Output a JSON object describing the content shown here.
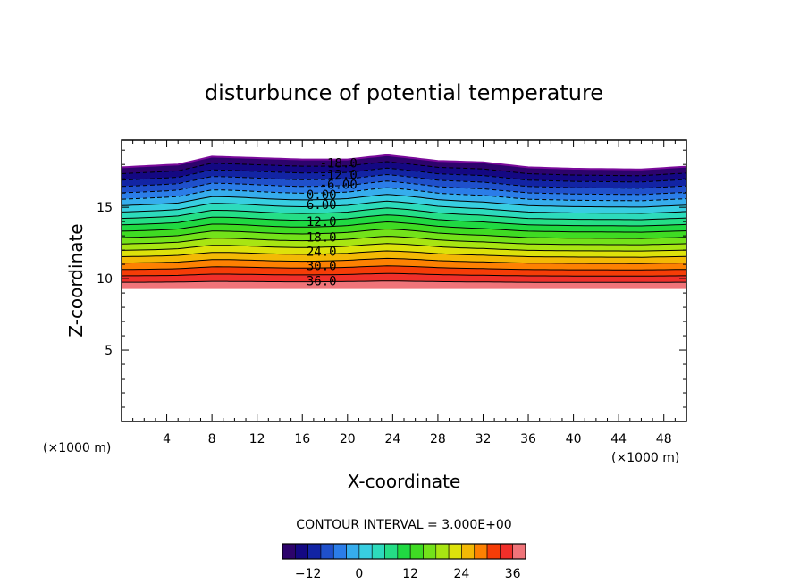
{
  "chart_data": {
    "type": "contour",
    "title": "disturbunce of potential temperature",
    "xlabel": "X-coordinate",
    "ylabel": "Z-coordinate",
    "x_unit_left": "(×1000 m)",
    "x_unit_right": "(×1000 m)",
    "xlim": [
      0,
      50
    ],
    "ylim": [
      0,
      19.7
    ],
    "x_ticks": [
      4,
      8,
      12,
      16,
      20,
      24,
      28,
      32,
      36,
      40,
      44,
      48
    ],
    "y_ticks": [
      5,
      10,
      15
    ],
    "contour_interval_text": "CONTOUR INTERVAL = 3.000E+00",
    "contour_interval": 3,
    "field_range": [
      -18,
      39
    ],
    "field_bottom_z": 9.3,
    "top_profile": [
      {
        "x": 0,
        "z": 17.8
      },
      {
        "x": 5,
        "z": 18.0
      },
      {
        "x": 8,
        "z": 18.55
      },
      {
        "x": 12,
        "z": 18.45
      },
      {
        "x": 16,
        "z": 18.35
      },
      {
        "x": 20,
        "z": 18.35
      },
      {
        "x": 23.5,
        "z": 18.65
      },
      {
        "x": 28,
        "z": 18.25
      },
      {
        "x": 32,
        "z": 18.15
      },
      {
        "x": 36,
        "z": 17.8
      },
      {
        "x": 40,
        "z": 17.7
      },
      {
        "x": 46,
        "z": 17.65
      },
      {
        "x": 50,
        "z": 17.85
      }
    ],
    "contour_labels": [
      {
        "text": "-18.0",
        "x": 19.2,
        "z": 18.1
      },
      {
        "text": "-12.0",
        "x": 19.2,
        "z": 17.3
      },
      {
        "text": "-6.00",
        "x": 19.2,
        "z": 16.6
      },
      {
        "text": "0.00",
        "x": 17.7,
        "z": 15.9
      },
      {
        "text": "6.00",
        "x": 17.7,
        "z": 15.2
      },
      {
        "text": "12.0",
        "x": 17.7,
        "z": 14.0
      },
      {
        "text": "18.0",
        "x": 17.7,
        "z": 12.9
      },
      {
        "text": "24.0",
        "x": 17.7,
        "z": 11.9
      },
      {
        "text": "30.0",
        "x": 17.7,
        "z": 10.9
      },
      {
        "text": "36.0",
        "x": 17.7,
        "z": 9.85
      }
    ],
    "colorbar": {
      "ticks": [
        -12,
        0,
        12,
        24,
        36
      ],
      "min": -18,
      "max": 39
    }
  }
}
